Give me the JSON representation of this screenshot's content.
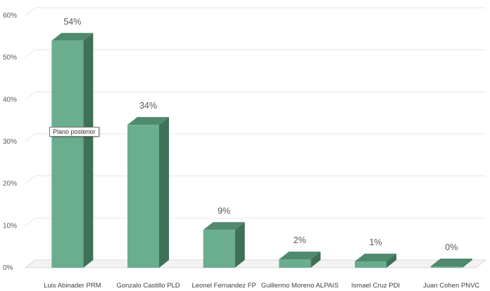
{
  "chart_data": {
    "type": "bar",
    "style": "3d-column",
    "categories": [
      "Luis Abinader PRM",
      "Gonzalo Castillo PLD",
      "Leonel Fernandez FP",
      "Guillermo Moreno ALPAIS",
      "Ismael Cruz PDI",
      "Juan Cohen PNVC"
    ],
    "values": [
      54,
      34,
      9,
      2,
      1,
      0
    ],
    "data_labels": [
      "54%",
      "34%",
      "9%",
      "2%",
      "1%",
      "0%"
    ],
    "ylim": [
      0,
      60
    ],
    "yticks": [
      0,
      10,
      20,
      30,
      40,
      50,
      60
    ],
    "ytick_labels": [
      "0%",
      "10%",
      "20%",
      "30%",
      "40%",
      "50%",
      "60%"
    ],
    "grid": true,
    "legend": "none",
    "colors": {
      "front": "#6aae8f",
      "top": "#4f8a6e",
      "side": "#3f7058",
      "grid": "#e6e6e6"
    }
  },
  "tooltip": {
    "text": "Plano posterior"
  }
}
